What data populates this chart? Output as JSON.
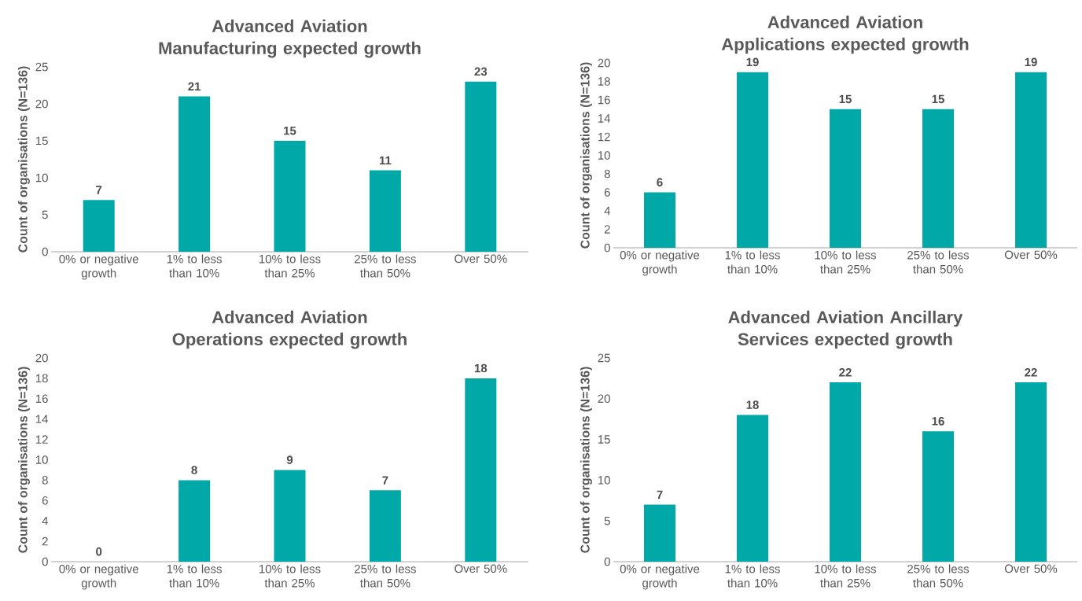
{
  "chart_data": [
    {
      "type": "bar",
      "title": "Advanced Aviation Manufacturing expected growth",
      "ylabel": "Count of organisations (N=136)",
      "categories": [
        "0% or negative growth",
        "1% to less than 10%",
        "10% to less than 25%",
        "25% to less than 50%",
        "Over 50%"
      ],
      "values": [
        7,
        21,
        15,
        11,
        23
      ],
      "color": "#00a9a8",
      "ylim": [
        0,
        25
      ],
      "yticks": [
        0,
        5,
        10,
        15,
        20,
        25
      ],
      "data_labels": true
    },
    {
      "type": "bar",
      "title": "Advanced Aviation Applications expected growth",
      "ylabel": "Count of organisations (N=136)",
      "categories": [
        "0% or negative growth",
        "1% to less than 10%",
        "10% to less than 25%",
        "25% to less than 50%",
        "Over 50%"
      ],
      "values": [
        6,
        19,
        15,
        15,
        19
      ],
      "color": "#00a9a8",
      "ylim": [
        0,
        20
      ],
      "yticks": [
        0,
        2,
        4,
        6,
        8,
        10,
        12,
        14,
        16,
        18,
        20
      ],
      "data_labels": true
    },
    {
      "type": "bar",
      "title": "Advanced Aviation Operations expected growth",
      "ylabel": "Count of organisations (N=136)",
      "categories": [
        "0% or negative growth",
        "1% to less than 10%",
        "10% to less than 25%",
        "25% to less than 50%",
        "Over 50%"
      ],
      "values": [
        0,
        8,
        9,
        7,
        18
      ],
      "color": "#00a9a8",
      "ylim": [
        0,
        20
      ],
      "yticks": [
        0,
        2,
        4,
        6,
        8,
        10,
        12,
        14,
        16,
        18,
        20
      ],
      "data_labels": true
    },
    {
      "type": "bar",
      "title": "Advanced Aviation Ancillary Services expected growth",
      "ylabel": "Count of organisations (N=136)",
      "categories": [
        "0% or negative growth",
        "1% to less than 10%",
        "10% to less than 25%",
        "25% to less than 50%",
        "Over 50%"
      ],
      "values": [
        7,
        18,
        22,
        16,
        22
      ],
      "color": "#00a9a8",
      "ylim": [
        0,
        25
      ],
      "yticks": [
        0,
        5,
        10,
        15,
        20,
        25
      ],
      "data_labels": true
    }
  ]
}
